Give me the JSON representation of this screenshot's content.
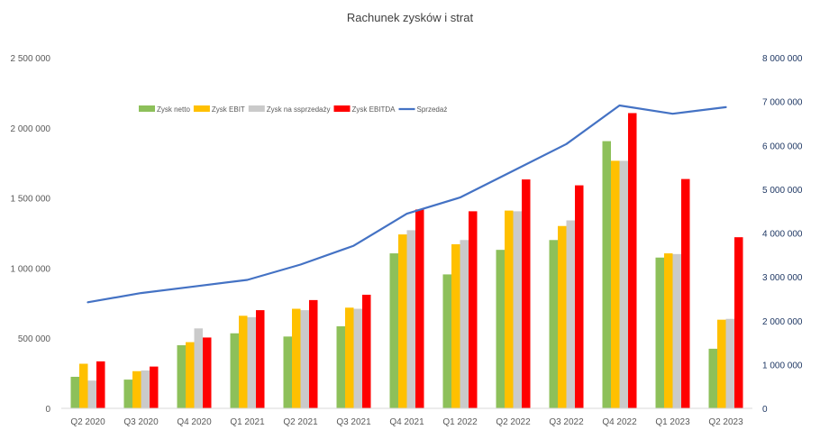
{
  "chart_data": {
    "type": "bar",
    "title": "Rachunek zysków i strat",
    "categories": [
      "Q2 2020",
      "Q3 2020",
      "Q4 2020",
      "Q1 2021",
      "Q2 2021",
      "Q3 2021",
      "Q4 2021",
      "Q1 2022",
      "Q2 2022",
      "Q3 2022",
      "Q4 2022",
      "Q1 2023",
      "Q2 2023"
    ],
    "series": [
      {
        "name": "Zysk netto",
        "kind": "bar",
        "axis": "left",
        "color": "#8DC05A",
        "values": [
          225000,
          205000,
          450000,
          535000,
          512000,
          585000,
          1105000,
          955000,
          1130000,
          1200000,
          1905000,
          1075000,
          425000
        ]
      },
      {
        "name": "Zysk EBIT",
        "kind": "bar",
        "axis": "left",
        "color": "#FFC000",
        "values": [
          318000,
          265000,
          472000,
          660000,
          710000,
          718000,
          1240000,
          1170000,
          1410000,
          1300000,
          1765000,
          1105000,
          632000
        ]
      },
      {
        "name": "Zysk na ssprzedaży",
        "kind": "bar",
        "axis": "left",
        "color": "#CACACA",
        "values": [
          198000,
          270000,
          570000,
          650000,
          700000,
          710000,
          1270000,
          1200000,
          1405000,
          1340000,
          1765000,
          1100000,
          638000
        ]
      },
      {
        "name": "Zysk EBITDA",
        "kind": "bar",
        "axis": "left",
        "color": "#FF0000",
        "values": [
          335000,
          298000,
          505000,
          700000,
          772000,
          810000,
          1418000,
          1405000,
          1632000,
          1590000,
          2105000,
          1635000,
          1220000
        ]
      },
      {
        "name": "Sprzedaż",
        "kind": "line",
        "axis": "right",
        "color": "#4472C4",
        "values": [
          2420000,
          2630000,
          2780000,
          2930000,
          3280000,
          3710000,
          4440000,
          4810000,
          5420000,
          6030000,
          6910000,
          6720000,
          6870000
        ]
      }
    ],
    "y_left": {
      "min": 0,
      "max": 2500000,
      "ticks": [
        "0",
        "500 000",
        "1 000 000",
        "1 500 000",
        "2 000 000",
        "2 500 000"
      ]
    },
    "y_right": {
      "min": 0,
      "max": 8000000,
      "ticks": [
        "0",
        "1 000 000",
        "2 000 000",
        "3 000 000",
        "4 000 000",
        "5 000 000",
        "6 000 000",
        "7 000 000",
        "8 000 000"
      ]
    },
    "legend": {
      "placement": "top-left inside plot"
    },
    "grid": false,
    "colors": {
      "left_axis_text": "#595959",
      "right_axis_text": "#1F3864",
      "axis_line": "#D9D9D9"
    }
  }
}
